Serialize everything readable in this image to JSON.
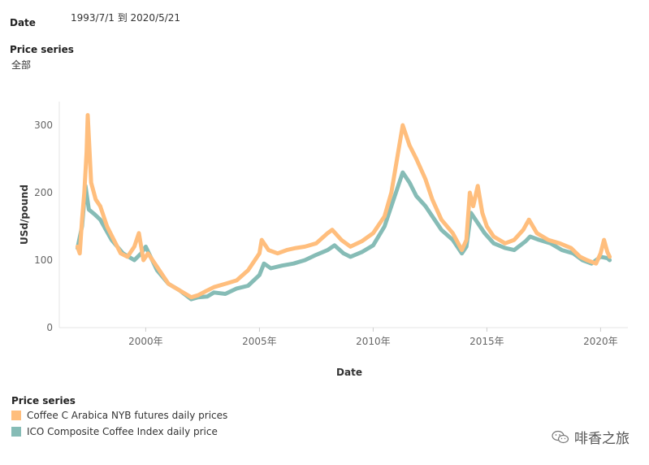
{
  "filters": {
    "date_label": "Date",
    "date_value": "1993/7/1 到 2020/5/21",
    "series_label": "Price series",
    "series_value": "全部"
  },
  "chart_data": {
    "type": "line",
    "xlabel": "Date",
    "ylabel": "USd/pound",
    "x_ticks": [
      "2000年",
      "2005年",
      "2010年",
      "2015年",
      "2020年"
    ],
    "x_tick_years": [
      2000,
      2005,
      2010,
      2015,
      2020
    ],
    "y_ticks": [
      0,
      100,
      200,
      300
    ],
    "xlim": [
      1996.2,
      2021.2
    ],
    "ylim": [
      0,
      335
    ],
    "grid": false,
    "legend_position": "bottom-left",
    "series": [
      {
        "name": "ICO Composite Coffee Index daily price",
        "color": "#86bcb6",
        "x": [
          1997.0,
          1997.2,
          1997.35,
          1997.5,
          1997.75,
          1998.0,
          1998.5,
          1999.0,
          1999.5,
          1999.8,
          2000.0,
          2000.5,
          2001.0,
          2001.5,
          2002.0,
          2002.3,
          2002.7,
          2003.0,
          2003.5,
          2004.0,
          2004.5,
          2005.0,
          2005.2,
          2005.5,
          2006.0,
          2006.5,
          2007.0,
          2007.5,
          2008.0,
          2008.3,
          2008.7,
          2009.0,
          2009.5,
          2010.0,
          2010.5,
          2010.8,
          2011.0,
          2011.3,
          2011.6,
          2011.9,
          2012.3,
          2012.7,
          2013.0,
          2013.5,
          2013.9,
          2014.1,
          2014.3,
          2014.6,
          2014.9,
          2015.3,
          2015.8,
          2016.2,
          2016.7,
          2016.9,
          2017.3,
          2017.8,
          2018.3,
          2018.8,
          2019.2,
          2019.6,
          2020.0,
          2020.3,
          2020.4
        ],
        "values": [
          118,
          150,
          210,
          175,
          168,
          160,
          130,
          110,
          100,
          110,
          120,
          85,
          65,
          55,
          42,
          45,
          46,
          52,
          50,
          58,
          62,
          78,
          95,
          88,
          92,
          95,
          100,
          108,
          115,
          122,
          110,
          105,
          112,
          122,
          150,
          180,
          200,
          230,
          215,
          195,
          180,
          160,
          145,
          130,
          110,
          120,
          170,
          155,
          140,
          125,
          118,
          115,
          128,
          135,
          130,
          125,
          115,
          110,
          100,
          95,
          105,
          103,
          100
        ]
      },
      {
        "name": "Coffee C Arabica NYB futures daily prices",
        "color": "#ffbe7d",
        "x": [
          1997.0,
          1997.1,
          1997.2,
          1997.3,
          1997.4,
          1997.45,
          1997.6,
          1997.8,
          1998.0,
          1998.3,
          1998.6,
          1998.9,
          1999.2,
          1999.5,
          1999.7,
          1999.9,
          2000.1,
          2000.5,
          2001.0,
          2001.5,
          2002.0,
          2002.3,
          2002.7,
          2003.0,
          2003.5,
          2004.0,
          2004.5,
          2005.0,
          2005.1,
          2005.4,
          2005.8,
          2006.2,
          2006.6,
          2007.0,
          2007.5,
          2008.0,
          2008.2,
          2008.6,
          2009.0,
          2009.5,
          2010.0,
          2010.5,
          2010.8,
          2011.0,
          2011.2,
          2011.3,
          2011.6,
          2011.9,
          2012.3,
          2012.6,
          2013.0,
          2013.5,
          2013.9,
          2014.1,
          2014.25,
          2014.4,
          2014.6,
          2014.8,
          2015.0,
          2015.3,
          2015.8,
          2016.2,
          2016.6,
          2016.85,
          2017.2,
          2017.7,
          2018.2,
          2018.7,
          2019.1,
          2019.4,
          2019.8,
          2020.0,
          2020.15,
          2020.3,
          2020.4
        ],
        "values": [
          120,
          110,
          160,
          200,
          260,
          315,
          215,
          190,
          180,
          150,
          130,
          110,
          105,
          120,
          140,
          100,
          110,
          90,
          65,
          55,
          45,
          48,
          55,
          60,
          65,
          70,
          85,
          110,
          130,
          115,
          110,
          115,
          118,
          120,
          125,
          140,
          145,
          130,
          120,
          128,
          140,
          165,
          200,
          240,
          280,
          300,
          270,
          250,
          220,
          190,
          160,
          140,
          115,
          130,
          200,
          180,
          210,
          170,
          150,
          135,
          125,
          130,
          145,
          160,
          140,
          130,
          125,
          118,
          105,
          100,
          95,
          110,
          130,
          112,
          105
        ]
      }
    ]
  },
  "legend": {
    "title": "Price series",
    "items": [
      {
        "label": "Coffee C Arabica NYB futures daily prices",
        "color": "#ffbe7d"
      },
      {
        "label": "ICO Composite Coffee Index daily price",
        "color": "#86bcb6"
      }
    ]
  },
  "watermark": {
    "text": "啡香之旅",
    "icon": "wechat-icon"
  }
}
